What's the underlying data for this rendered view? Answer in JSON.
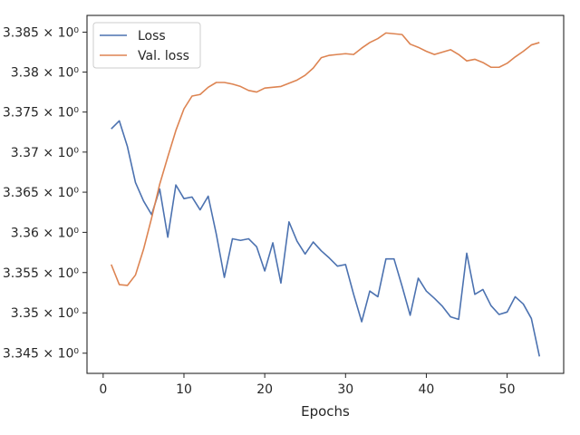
{
  "chart_data": {
    "type": "line",
    "title": "",
    "xlabel": "Epochs",
    "ylabel": "",
    "y_scale": "log",
    "xlim": [
      -2,
      57
    ],
    "ylim": [
      3.3425,
      3.3871
    ],
    "grid": false,
    "legend_position": "top-left",
    "x_ticks": [
      0,
      10,
      20,
      30,
      40,
      50
    ],
    "x_tick_labels": [
      "0",
      "10",
      "20",
      "30",
      "40",
      "50"
    ],
    "y_ticks": [
      3.345,
      3.35,
      3.355,
      3.36,
      3.365,
      3.37,
      3.375,
      3.38,
      3.385
    ],
    "y_tick_labels": [
      "3.345 × 10⁰",
      "3.35 × 10⁰",
      "3.355 × 10⁰",
      "3.36 × 10⁰",
      "3.365 × 10⁰",
      "3.37 × 10⁰",
      "3.375 × 10⁰",
      "3.38 × 10⁰",
      "3.385 × 10⁰"
    ],
    "x": [
      1,
      2,
      3,
      4,
      5,
      6,
      7,
      8,
      9,
      10,
      11,
      12,
      13,
      14,
      15,
      16,
      17,
      18,
      19,
      20,
      21,
      22,
      23,
      24,
      25,
      26,
      27,
      28,
      29,
      30,
      31,
      32,
      33,
      34,
      35,
      36,
      37,
      38,
      39,
      40,
      41,
      42,
      43,
      44,
      45,
      46,
      47,
      48,
      49,
      50,
      51,
      52,
      53,
      54
    ],
    "series": [
      {
        "name": "Loss",
        "color": "#4c72b0",
        "values": [
          3.3729,
          3.3739,
          3.3707,
          3.3662,
          3.3639,
          3.3622,
          3.3654,
          3.3594,
          3.3659,
          3.3642,
          3.3644,
          3.3628,
          3.3645,
          3.3598,
          3.3544,
          3.3592,
          3.359,
          3.3592,
          3.3582,
          3.3552,
          3.3587,
          3.3537,
          3.3613,
          3.3589,
          3.3573,
          3.3588,
          3.3577,
          3.3568,
          3.3558,
          3.356,
          3.3523,
          3.3489,
          3.3527,
          3.352,
          3.3567,
          3.3567,
          3.3533,
          3.3497,
          3.3543,
          3.3527,
          3.3518,
          3.3508,
          3.3495,
          3.3492,
          3.3574,
          3.3523,
          3.3529,
          3.3509,
          3.3498,
          3.3501,
          3.352,
          3.3511,
          3.3493,
          3.3446
        ]
      },
      {
        "name": "Val. loss",
        "color": "#dd8452",
        "values": [
          3.356,
          3.3535,
          3.3534,
          3.3547,
          3.3579,
          3.3618,
          3.366,
          3.3694,
          3.3727,
          3.3754,
          3.377,
          3.3772,
          3.3781,
          3.3787,
          3.3787,
          3.3785,
          3.3782,
          3.3777,
          3.3775,
          3.378,
          3.3781,
          3.3782,
          3.3786,
          3.379,
          3.3796,
          3.3805,
          3.3818,
          3.3821,
          3.3822,
          3.3823,
          3.3822,
          3.383,
          3.3837,
          3.3842,
          3.3849,
          3.3848,
          3.3847,
          3.3835,
          3.3831,
          3.3826,
          3.3822,
          3.3825,
          3.3828,
          3.3822,
          3.3814,
          3.3816,
          3.3812,
          3.3806,
          3.3806,
          3.3811,
          3.3819,
          3.3826,
          3.3834,
          3.3837
        ]
      }
    ]
  }
}
